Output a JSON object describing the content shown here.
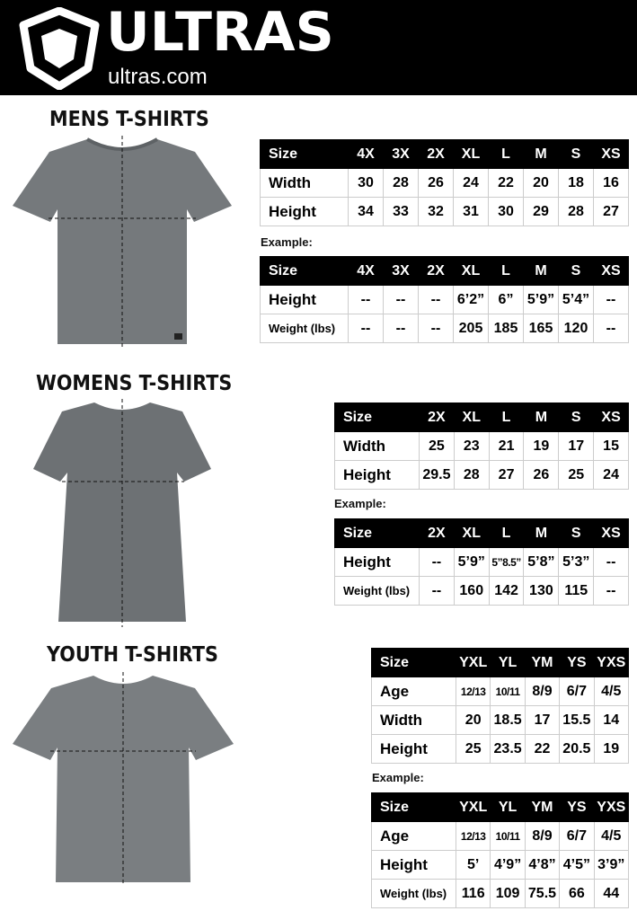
{
  "brand": {
    "name": "ULTRAS",
    "url": "ultras.com",
    "logo": "shield-icon"
  },
  "sections": {
    "mens": {
      "title": "MENS T-SHIRTS",
      "example_label": "Example:",
      "sizes": {
        "header": [
          "Size",
          "4X",
          "3X",
          "2X",
          "XL",
          "L",
          "M",
          "S",
          "XS"
        ],
        "rows": [
          [
            "Width",
            "30",
            "28",
            "26",
            "24",
            "22",
            "20",
            "18",
            "16"
          ],
          [
            "Height",
            "34",
            "33",
            "32",
            "31",
            "30",
            "29",
            "28",
            "27"
          ]
        ]
      },
      "example": {
        "header": [
          "Size",
          "4X",
          "3X",
          "2X",
          "XL",
          "L",
          "M",
          "S",
          "XS"
        ],
        "rows": [
          [
            "Height",
            "--",
            "--",
            "--",
            "6’2”",
            "6”",
            "5’9”",
            "5’4”",
            "--"
          ],
          [
            "Weight (lbs)",
            "--",
            "--",
            "--",
            "205",
            "185",
            "165",
            "120",
            "--"
          ]
        ]
      }
    },
    "womens": {
      "title": "WOMENS T-SHIRTS",
      "example_label": "Example:",
      "sizes": {
        "header": [
          "Size",
          "2X",
          "XL",
          "L",
          "M",
          "S",
          "XS"
        ],
        "rows": [
          [
            "Width",
            "25",
            "23",
            "21",
            "19",
            "17",
            "15"
          ],
          [
            "Height",
            "29.5",
            "28",
            "27",
            "26",
            "25",
            "24"
          ]
        ]
      },
      "example": {
        "header": [
          "Size",
          "2X",
          "XL",
          "L",
          "M",
          "S",
          "XS"
        ],
        "rows": [
          [
            "Height",
            "--",
            "5’9”",
            "5”8.5”",
            "5’8”",
            "5’3”",
            "--"
          ],
          [
            "Weight (lbs)",
            "--",
            "160",
            "142",
            "130",
            "115",
            "--"
          ]
        ]
      }
    },
    "youth": {
      "title": "YOUTH T-SHIRTS",
      "example_label": "Example:",
      "sizes": {
        "header": [
          "Size",
          "YXL",
          "YL",
          "YM",
          "YS",
          "YXS"
        ],
        "rows": [
          [
            "Age",
            "12/13",
            "10/11",
            "8/9",
            "6/7",
            "4/5"
          ],
          [
            "Width",
            "20",
            "18.5",
            "17",
            "15.5",
            "14"
          ],
          [
            "Height",
            "25",
            "23.5",
            "22",
            "20.5",
            "19"
          ]
        ]
      },
      "example": {
        "header": [
          "Size",
          "YXL",
          "YL",
          "YM",
          "YS",
          "YXS"
        ],
        "rows": [
          [
            "Age",
            "12/13",
            "10/11",
            "8/9",
            "6/7",
            "4/5"
          ],
          [
            "Height",
            "5’",
            "4’9”",
            "4’8”",
            "4’5”",
            "3’9”"
          ],
          [
            "Weight (lbs)",
            "116",
            "109",
            "75.5",
            "66",
            "44"
          ]
        ]
      }
    }
  }
}
